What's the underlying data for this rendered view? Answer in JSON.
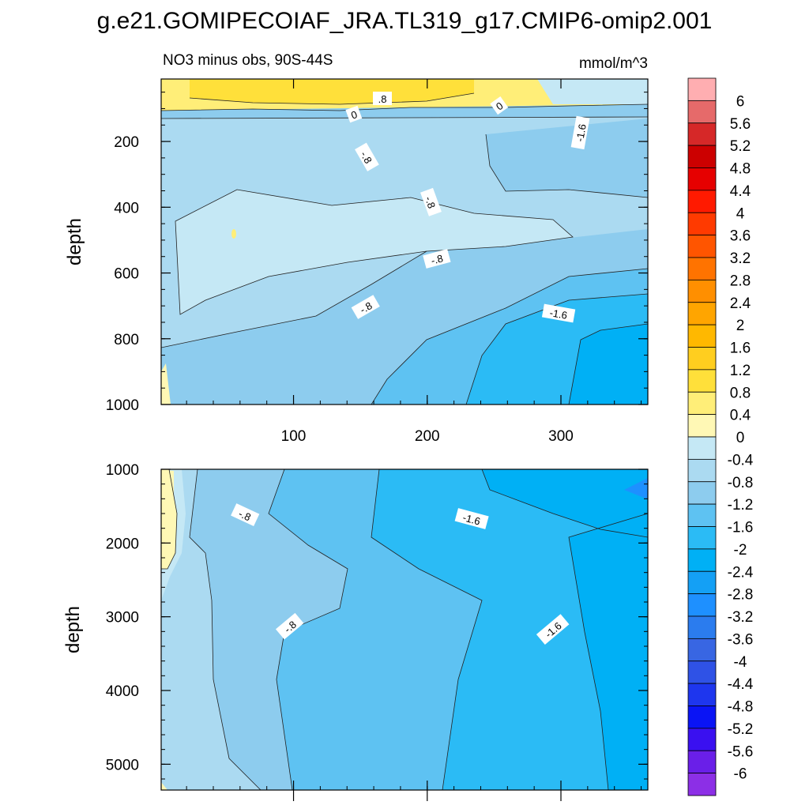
{
  "title": "g.e21.GOMIPECOIAF_JRA.TL319_g17.CMIP6-omip2.001",
  "chart_data": [
    {
      "type": "heatmap",
      "panel": "upper",
      "subtitle_left": "NO3 minus obs, 90S-44S",
      "subtitle_right": "mmol/m^3",
      "ylabel": "depth",
      "xlabel": "",
      "xlim": [
        1,
        365
      ],
      "ylim": [
        1000,
        10
      ],
      "xticks": [
        "100",
        "200",
        "300"
      ],
      "yticks": [
        "200",
        "400",
        "600",
        "800",
        "1000"
      ],
      "contour_interval": 0.4,
      "contour_labels": [
        ".8",
        "0",
        "0",
        "-1.6",
        "-.8",
        "-.8",
        "-.8",
        "-.8",
        "-1.6"
      ],
      "regions": [
        {
          "desc": "surface positive band",
          "range": [
            0.4,
            1.2
          ]
        },
        {
          "desc": "upper cold band",
          "range": [
            -1.2,
            -0.4
          ]
        },
        {
          "desc": "mid-depth core",
          "range": [
            -0.4,
            0
          ]
        },
        {
          "desc": "deep late-season",
          "range": [
            -2.4,
            -1.6
          ]
        }
      ]
    },
    {
      "type": "heatmap",
      "panel": "lower",
      "ylabel": "depth",
      "xlabel": "",
      "xlim": [
        1,
        365
      ],
      "ylim": [
        5350,
        1000
      ],
      "yticks": [
        "1000",
        "2000",
        "3000",
        "4000",
        "5000"
      ],
      "contour_interval": 0.4,
      "contour_labels": [
        "-.8",
        "-1.6",
        "-.8",
        "-1.6"
      ]
    }
  ],
  "colorbar": {
    "labels": [
      "6",
      "5.6",
      "5.2",
      "4.8",
      "4.4",
      "4",
      "3.6",
      "3.2",
      "2.8",
      "2.4",
      "2",
      "1.6",
      "1.2",
      "0.8",
      "0.4",
      "0",
      "-0.4",
      "-0.8",
      "-1.2",
      "-1.6",
      "-2",
      "-2.4",
      "-2.8",
      "-3.2",
      "-3.6",
      "-4",
      "-4.4",
      "-4.8",
      "-5.2",
      "-5.6",
      "-6"
    ],
    "colors": [
      "#FFAEB1",
      "#E66A6A",
      "#D62828",
      "#CC0000",
      "#E60000",
      "#FF1A00",
      "#FF3A00",
      "#FF5500",
      "#FF7300",
      "#FF8F00",
      "#FFA500",
      "#FFB800",
      "#FFCE1F",
      "#FFE03A",
      "#FFEE78",
      "#FFF8B5",
      "#C5E8F5",
      "#ABDAF1",
      "#8DCCEE",
      "#5EC2F2",
      "#2BBBF5",
      "#00B0F5",
      "#14A0F5",
      "#1E90FF",
      "#2B7CEE",
      "#3866E3",
      "#2F52E6",
      "#1E36EE",
      "#0A14F5",
      "#3A10F0",
      "#6A1FE8",
      "#8C2FE6"
    ]
  }
}
